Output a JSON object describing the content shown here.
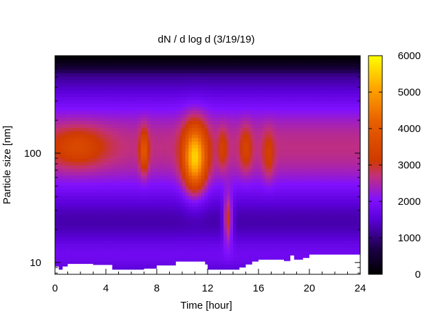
{
  "chart_data": {
    "type": "heatmap",
    "title": "dN / d log d (3/19/19)",
    "xlabel": "Time [hour]",
    "ylabel": "Particle size [nm]",
    "xlim": [
      0,
      24
    ],
    "ylim": [
      7.8,
      780
    ],
    "y_scale": "log",
    "x_ticks": [
      0,
      4,
      8,
      12,
      16,
      20,
      24
    ],
    "y_ticks": [
      10,
      100
    ],
    "colorbar": {
      "ticks": [
        0,
        1000,
        2000,
        3000,
        4000,
        5000,
        6000
      ],
      "range": [
        0,
        6000
      ],
      "colormap": [
        "#000000",
        "#2a0070",
        "#7a00ff",
        "#c2307a",
        "#cf3a00",
        "#ff8a00",
        "#ffff00"
      ]
    },
    "grid": false,
    "features": [
      {
        "name": "background_mode",
        "time_range": [
          0,
          24
        ],
        "peak_diameter_nm": 115,
        "peak_value": 3000
      },
      {
        "name": "morning_peak",
        "time_peak_hour": 7.0,
        "diameter_nm": 105,
        "peak_value": 3500
      },
      {
        "name": "midday_peak",
        "time_peak_hour": 11.0,
        "diameter_nm": 90,
        "peak_value": 5200
      },
      {
        "name": "afternoon_peak",
        "time_peak_hour": 13.6,
        "diameter_nm": 25,
        "peak_value": 3400
      },
      {
        "name": "evening_peak_1",
        "time_peak_hour": 15.0,
        "diameter_nm": 110,
        "peak_value": 3000
      },
      {
        "name": "evening_peak_2",
        "time_peak_hour": 16.8,
        "diameter_nm": 95,
        "peak_value": 3000
      }
    ],
    "lower_cutoff_nm": [
      {
        "t": 0.0,
        "d": 9.2
      },
      {
        "t": 0.3,
        "d": 8.6
      },
      {
        "t": 0.6,
        "d": 9.2
      },
      {
        "t": 1.0,
        "d": 9.7
      },
      {
        "t": 2.0,
        "d": 9.7
      },
      {
        "t": 3.0,
        "d": 9.5
      },
      {
        "t": 4.0,
        "d": 9.5
      },
      {
        "t": 4.5,
        "d": 8.6
      },
      {
        "t": 5.5,
        "d": 8.6
      },
      {
        "t": 7.0,
        "d": 8.8
      },
      {
        "t": 8.0,
        "d": 9.4
      },
      {
        "t": 9.5,
        "d": 10.2
      },
      {
        "t": 11.0,
        "d": 10.2
      },
      {
        "t": 11.8,
        "d": 9.6
      },
      {
        "t": 12.0,
        "d": 8.6
      },
      {
        "t": 14.0,
        "d": 8.6
      },
      {
        "t": 14.5,
        "d": 9.0
      },
      {
        "t": 15.0,
        "d": 9.6
      },
      {
        "t": 15.5,
        "d": 10.2
      },
      {
        "t": 16.0,
        "d": 10.6
      },
      {
        "t": 17.0,
        "d": 10.6
      },
      {
        "t": 18.0,
        "d": 10.3
      },
      {
        "t": 18.5,
        "d": 11.6
      },
      {
        "t": 18.8,
        "d": 10.6
      },
      {
        "t": 19.5,
        "d": 11.0
      },
      {
        "t": 20.0,
        "d": 11.8
      },
      {
        "t": 24.0,
        "d": 11.8
      }
    ]
  }
}
